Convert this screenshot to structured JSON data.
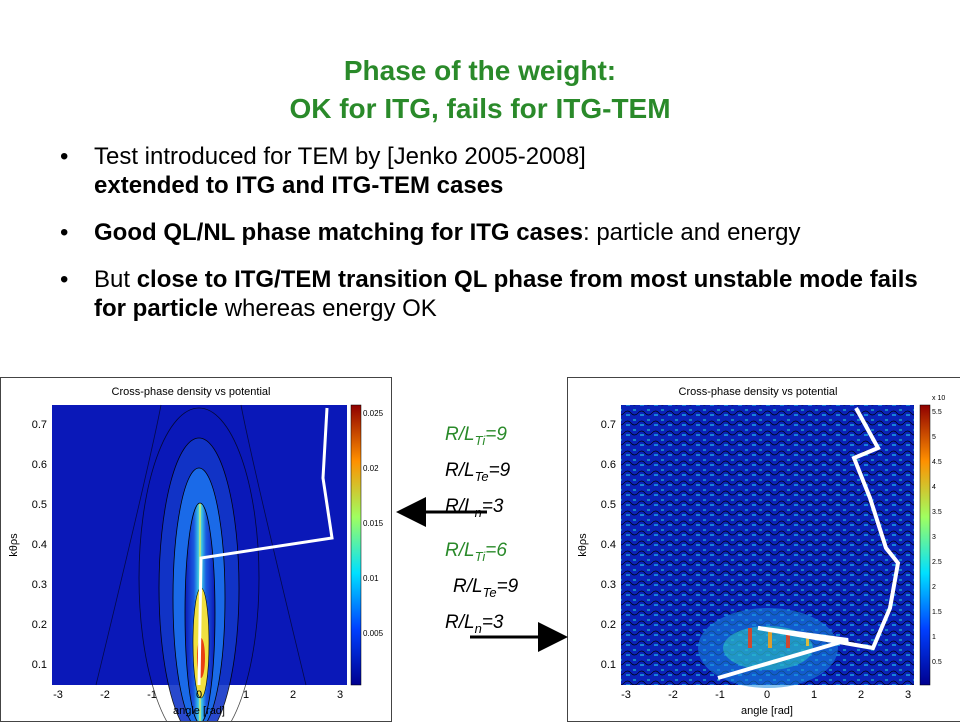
{
  "title": {
    "line1": "Phase of the weight:",
    "line2": "OK for ITG, fails for ITG-TEM"
  },
  "bullets": [
    {
      "normal": "Test introduced for TEM by [Jenko 2005-2008]",
      "bold": "extended to ITG and ITG-TEM cases"
    },
    {
      "bold": "Good QL/NL phase matching for ITG cases",
      "normal": ": particle and energy"
    },
    {
      "prefix": "But ",
      "bold": "close to ITG/TEM transition QL phase from most unstable mode fails for particle",
      "suffix": " whereas energy OK"
    }
  ],
  "bullet_symbol": "•",
  "params_top": {
    "line1": {
      "pre": "R/L",
      "sub": "Ti",
      "post": "=9"
    },
    "line2": {
      "pre": "R/L",
      "sub": "Te",
      "post": "=9"
    },
    "line3": {
      "pre": "R/L",
      "sub": "n",
      "post": "=3"
    }
  },
  "params_bottom": {
    "line1": {
      "pre": "R/L",
      "sub": "Ti",
      "post": "=6"
    },
    "line2": {
      "pre": "R/L",
      "sub": "Te",
      "post": "=9"
    },
    "line3": {
      "pre": "R/L",
      "sub": "n",
      "post": "=3"
    }
  },
  "plots": {
    "left": {
      "title": "Cross-phase density vs potential",
      "xlabel": "angle [rad]",
      "ylabel": "kθρs",
      "xticks": [
        "-3",
        "-2",
        "-1",
        "0",
        "1",
        "2",
        "3"
      ],
      "yticks": [
        "0.1",
        "0.2",
        "0.3",
        "0.4",
        "0.5",
        "0.6",
        "0.7"
      ],
      "cbar_ticks": [
        "0.025",
        "0.02",
        "0.015",
        "0.01",
        "0.005"
      ]
    },
    "right": {
      "title": "Cross-phase density vs potential",
      "xlabel": "angle [rad]",
      "ylabel": "kθρs",
      "xticks": [
        "-3",
        "-2",
        "-1",
        "0",
        "1",
        "2",
        "3"
      ],
      "yticks": [
        "0.1",
        "0.2",
        "0.3",
        "0.4",
        "0.5",
        "0.6",
        "0.7"
      ],
      "cbar_ticks": [
        "5.5",
        "5",
        "4.5",
        "4",
        "3.5",
        "3",
        "2.5",
        "2",
        "1.5",
        "1",
        "0.5"
      ],
      "cbar_exponent": "x 10"
    }
  },
  "colors": {
    "title_green": "#2a8a2a",
    "plot_background": "#0a18b8"
  }
}
